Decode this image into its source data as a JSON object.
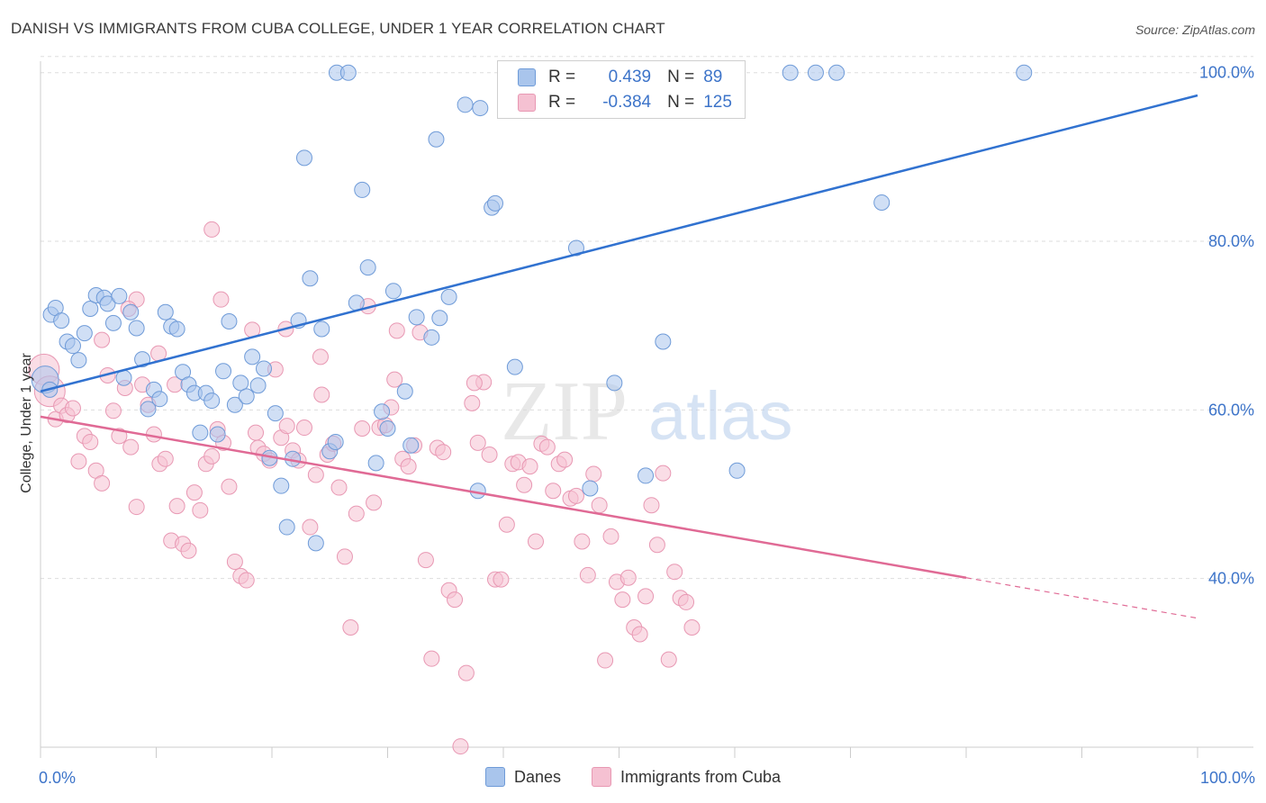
{
  "title": "DANISH VS IMMIGRANTS FROM CUBA COLLEGE, UNDER 1 YEAR CORRELATION CHART",
  "source": "Source: ZipAtlas.com",
  "watermark": {
    "zip": "ZIP",
    "atlas": "atlas"
  },
  "colors": {
    "danes_fill": "#a9c5ec",
    "danes_stroke": "#6f9bd8",
    "danes_line": "#3172d0",
    "cuba_fill": "#f5c1d2",
    "cuba_stroke": "#e898b3",
    "cuba_line": "#e06a95",
    "grid": "#dddddd",
    "axis_text": "#3d74c9"
  },
  "legend": {
    "rows": [
      {
        "r_label": "R =",
        "r_value": "0.439",
        "n_label": "N =",
        "n_value": "89"
      },
      {
        "r_label": "R =",
        "r_value": "-0.384",
        "n_label": "N =",
        "n_value": "125"
      }
    ]
  },
  "chart_data": {
    "type": "scatter",
    "title": "DANISH VS IMMIGRANTS FROM CUBA COLLEGE, UNDER 1 YEAR CORRELATION CHART",
    "xlabel": "",
    "ylabel": "College, Under 1 year",
    "xlim": [
      0,
      100
    ],
    "ylim": [
      20,
      102
    ],
    "x_tick_labels": [
      "0.0%",
      "100.0%"
    ],
    "y_ticks": [
      40,
      60,
      80,
      100
    ],
    "y_tick_labels": [
      "40.0%",
      "60.0%",
      "80.0%",
      "100.0%"
    ],
    "grid": true,
    "legend_position": "bottom",
    "series": [
      {
        "name": "Danes",
        "trend": {
          "x": [
            0,
            100
          ],
          "y": [
            62.2,
            97.3
          ]
        },
        "points": [
          [
            0.4,
            63.6
          ],
          [
            0.8,
            62.4
          ],
          [
            0.9,
            71.3
          ],
          [
            1.3,
            72.1
          ],
          [
            1.8,
            70.6
          ],
          [
            2.3,
            68.1
          ],
          [
            2.8,
            67.6
          ],
          [
            3.3,
            65.9
          ],
          [
            3.8,
            69.1
          ],
          [
            4.3,
            72.0
          ],
          [
            4.8,
            73.6
          ],
          [
            5.5,
            73.3
          ],
          [
            5.8,
            72.6
          ],
          [
            6.3,
            70.3
          ],
          [
            6.8,
            73.5
          ],
          [
            7.2,
            63.8
          ],
          [
            7.8,
            71.6
          ],
          [
            8.3,
            69.7
          ],
          [
            8.8,
            66.0
          ],
          [
            9.3,
            60.1
          ],
          [
            9.8,
            62.4
          ],
          [
            10.3,
            61.3
          ],
          [
            10.8,
            71.6
          ],
          [
            11.3,
            69.9
          ],
          [
            11.8,
            69.6
          ],
          [
            12.3,
            64.5
          ],
          [
            12.8,
            63.0
          ],
          [
            13.3,
            62.0
          ],
          [
            13.8,
            57.3
          ],
          [
            14.3,
            62.0
          ],
          [
            14.8,
            61.1
          ],
          [
            15.3,
            57.1
          ],
          [
            15.8,
            64.6
          ],
          [
            16.3,
            70.5
          ],
          [
            16.8,
            60.6
          ],
          [
            17.3,
            63.2
          ],
          [
            17.8,
            61.6
          ],
          [
            18.3,
            66.3
          ],
          [
            18.8,
            62.9
          ],
          [
            19.3,
            64.9
          ],
          [
            19.8,
            54.3
          ],
          [
            20.3,
            59.6
          ],
          [
            20.8,
            51.0
          ],
          [
            21.3,
            46.1
          ],
          [
            21.8,
            54.2
          ],
          [
            22.3,
            70.6
          ],
          [
            22.8,
            89.9
          ],
          [
            23.3,
            75.6
          ],
          [
            23.8,
            44.2
          ],
          [
            24.3,
            69.6
          ],
          [
            25.0,
            55.1
          ],
          [
            25.5,
            56.2
          ],
          [
            25.6,
            100.0
          ],
          [
            26.6,
            100.0
          ],
          [
            27.3,
            72.7
          ],
          [
            27.8,
            86.1
          ],
          [
            28.3,
            76.9
          ],
          [
            29.0,
            53.7
          ],
          [
            29.5,
            59.8
          ],
          [
            30.0,
            57.8
          ],
          [
            30.5,
            74.1
          ],
          [
            31.5,
            62.2
          ],
          [
            32.0,
            55.8
          ],
          [
            32.5,
            71.0
          ],
          [
            33.8,
            68.6
          ],
          [
            34.2,
            92.1
          ],
          [
            34.5,
            70.9
          ],
          [
            35.3,
            73.4
          ],
          [
            36.7,
            96.2
          ],
          [
            37.8,
            50.4
          ],
          [
            38.0,
            95.8
          ],
          [
            39.0,
            84.0
          ],
          [
            39.3,
            84.5
          ],
          [
            41.0,
            65.1
          ],
          [
            42.2,
            100.0
          ],
          [
            44.7,
            100.0
          ],
          [
            46.3,
            79.2
          ],
          [
            47.5,
            50.7
          ],
          [
            49.6,
            63.2
          ],
          [
            52.3,
            52.2
          ],
          [
            53.8,
            68.1
          ],
          [
            56.0,
            100.0
          ],
          [
            57.0,
            100.0
          ],
          [
            60.2,
            52.8
          ],
          [
            64.8,
            100.0
          ],
          [
            67.0,
            100.0
          ],
          [
            68.8,
            100.0
          ],
          [
            72.7,
            84.6
          ],
          [
            85.0,
            100.0
          ]
        ]
      },
      {
        "name": "Immigrants from Cuba",
        "trend": {
          "x": [
            0,
            80
          ],
          "y": [
            59.2,
            40.1
          ]
        },
        "trend_dashed": {
          "x": [
            80,
            100
          ],
          "y": [
            40.1,
            35.3
          ]
        },
        "points": [
          [
            0.3,
            64.8
          ],
          [
            0.8,
            62.2
          ],
          [
            1.3,
            58.9
          ],
          [
            1.8,
            60.5
          ],
          [
            2.3,
            59.4
          ],
          [
            2.8,
            60.2
          ],
          [
            3.3,
            53.9
          ],
          [
            3.8,
            56.9
          ],
          [
            4.3,
            56.2
          ],
          [
            4.8,
            52.8
          ],
          [
            5.3,
            51.3
          ],
          [
            5.8,
            64.1
          ],
          [
            6.3,
            59.9
          ],
          [
            6.8,
            56.9
          ],
          [
            7.3,
            62.6
          ],
          [
            7.8,
            55.6
          ],
          [
            8.3,
            48.5
          ],
          [
            8.8,
            63.0
          ],
          [
            9.3,
            60.6
          ],
          [
            9.8,
            57.1
          ],
          [
            10.3,
            53.6
          ],
          [
            10.8,
            54.2
          ],
          [
            11.3,
            44.5
          ],
          [
            11.8,
            48.6
          ],
          [
            12.3,
            44.1
          ],
          [
            12.8,
            43.3
          ],
          [
            13.3,
            50.2
          ],
          [
            13.8,
            48.1
          ],
          [
            14.3,
            53.6
          ],
          [
            14.8,
            54.5
          ],
          [
            15.3,
            57.7
          ],
          [
            15.8,
            56.1
          ],
          [
            16.3,
            50.9
          ],
          [
            16.8,
            42.0
          ],
          [
            17.3,
            40.3
          ],
          [
            17.8,
            39.8
          ],
          [
            18.3,
            69.5
          ],
          [
            18.8,
            55.5
          ],
          [
            19.3,
            54.8
          ],
          [
            19.8,
            54.0
          ],
          [
            20.3,
            64.8
          ],
          [
            20.8,
            56.7
          ],
          [
            21.3,
            58.1
          ],
          [
            21.8,
            55.2
          ],
          [
            22.3,
            54.0
          ],
          [
            22.8,
            57.9
          ],
          [
            23.3,
            46.1
          ],
          [
            23.8,
            52.3
          ],
          [
            24.3,
            61.8
          ],
          [
            24.8,
            54.7
          ],
          [
            25.3,
            56.0
          ],
          [
            25.8,
            50.8
          ],
          [
            26.3,
            42.6
          ],
          [
            26.8,
            34.2
          ],
          [
            27.3,
            47.7
          ],
          [
            27.8,
            57.8
          ],
          [
            28.3,
            72.3
          ],
          [
            28.8,
            49.0
          ],
          [
            29.3,
            57.9
          ],
          [
            29.8,
            58.2
          ],
          [
            30.3,
            60.3
          ],
          [
            30.8,
            69.4
          ],
          [
            31.3,
            54.2
          ],
          [
            31.8,
            53.3
          ],
          [
            32.3,
            55.8
          ],
          [
            32.8,
            69.2
          ],
          [
            33.3,
            42.2
          ],
          [
            33.8,
            30.5
          ],
          [
            34.3,
            55.5
          ],
          [
            34.8,
            55.0
          ],
          [
            35.3,
            38.6
          ],
          [
            35.8,
            37.5
          ],
          [
            36.3,
            20.1
          ],
          [
            36.8,
            28.8
          ],
          [
            37.3,
            60.8
          ],
          [
            37.8,
            56.1
          ],
          [
            38.3,
            63.3
          ],
          [
            38.8,
            54.7
          ],
          [
            39.3,
            39.9
          ],
          [
            39.8,
            39.9
          ],
          [
            40.3,
            46.4
          ],
          [
            40.8,
            53.6
          ],
          [
            41.3,
            53.8
          ],
          [
            41.8,
            51.1
          ],
          [
            42.3,
            53.3
          ],
          [
            42.8,
            44.4
          ],
          [
            43.3,
            56.0
          ],
          [
            43.8,
            55.6
          ],
          [
            44.3,
            50.4
          ],
          [
            44.8,
            53.6
          ],
          [
            45.3,
            54.1
          ],
          [
            45.8,
            49.5
          ],
          [
            46.3,
            49.8
          ],
          [
            46.8,
            44.4
          ],
          [
            47.3,
            40.4
          ],
          [
            47.8,
            52.4
          ],
          [
            48.3,
            48.7
          ],
          [
            48.8,
            30.3
          ],
          [
            49.3,
            45.0
          ],
          [
            49.8,
            39.6
          ],
          [
            50.3,
            37.5
          ],
          [
            50.8,
            40.1
          ],
          [
            51.3,
            34.2
          ],
          [
            51.8,
            33.4
          ],
          [
            52.3,
            37.9
          ],
          [
            52.8,
            48.7
          ],
          [
            53.3,
            44.0
          ],
          [
            53.8,
            52.5
          ],
          [
            54.3,
            30.4
          ],
          [
            54.8,
            40.8
          ],
          [
            55.3,
            37.7
          ],
          [
            55.8,
            37.2
          ],
          [
            56.3,
            34.2
          ],
          [
            18.6,
            57.3
          ],
          [
            14.8,
            81.4
          ],
          [
            15.6,
            73.1
          ],
          [
            21.2,
            69.6
          ],
          [
            24.2,
            66.3
          ],
          [
            8.3,
            73.1
          ],
          [
            7.6,
            72.0
          ],
          [
            10.2,
            66.7
          ],
          [
            5.3,
            68.3
          ],
          [
            30.6,
            63.6
          ],
          [
            37.5,
            63.2
          ],
          [
            11.6,
            63.0
          ]
        ]
      }
    ]
  },
  "y_axis_title": "College, Under 1 year",
  "bottom_legend": {
    "danes": "Danes",
    "cuba": "Immigrants from Cuba"
  }
}
